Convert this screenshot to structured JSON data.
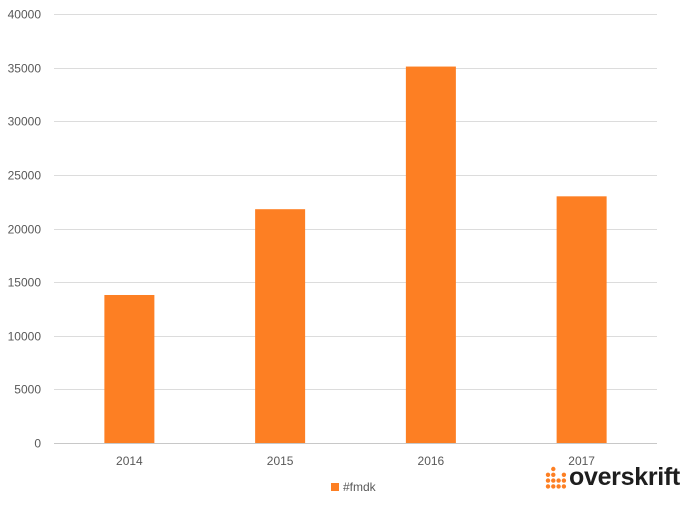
{
  "chart_data": {
    "type": "bar",
    "categories": [
      "2014",
      "2015",
      "2016",
      "2017"
    ],
    "series": [
      {
        "name": "#fmdk",
        "values": [
          13800,
          21800,
          35100,
          23000
        ],
        "color": "#fd7f23"
      }
    ],
    "title": "",
    "xlabel": "",
    "ylabel": "",
    "ylim": [
      0,
      40000
    ],
    "yticks": [
      0,
      5000,
      10000,
      15000,
      20000,
      25000,
      30000,
      35000,
      40000
    ],
    "grid": true,
    "legend_position": "bottom"
  },
  "legend": {
    "label": "#fmdk",
    "color": "#fd7f23"
  },
  "logo": {
    "text": "overskrift",
    "icon": "dot-bars-icon",
    "color": "#fd7f23"
  }
}
